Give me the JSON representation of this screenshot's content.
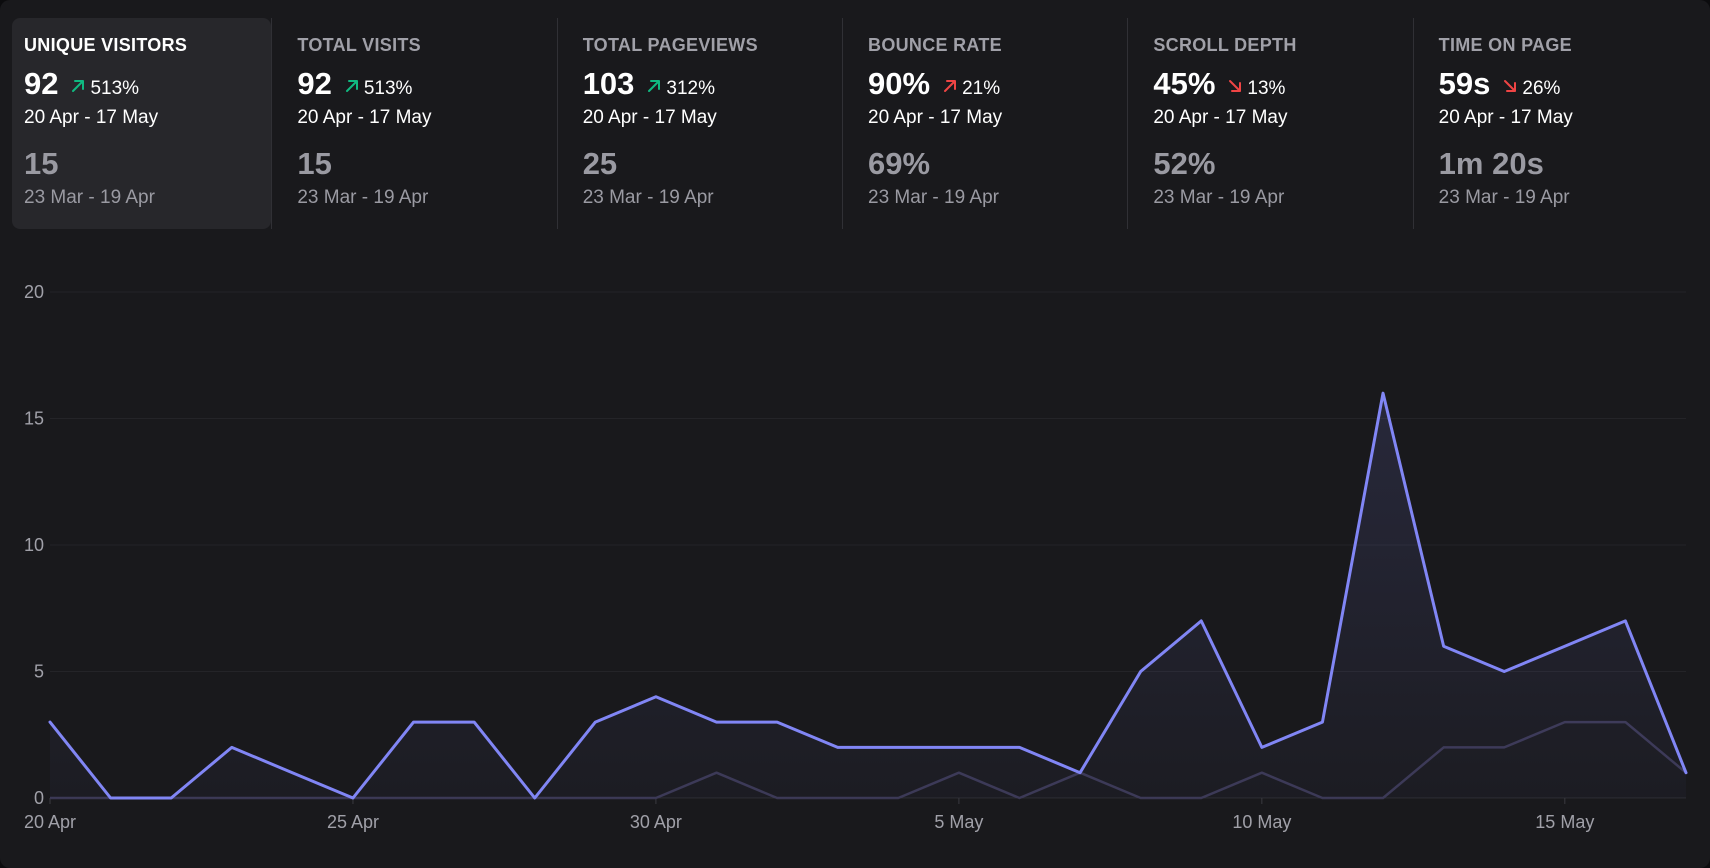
{
  "colors": {
    "positive": "#10b981",
    "negative": "#ef4444",
    "series_current": "#8186f5",
    "series_previous": "#3a3752"
  },
  "cards": [
    {
      "label": "UNIQUE VISITORS",
      "value": "92",
      "change": "513%",
      "trend": "up",
      "trend_good": true,
      "range": "20 Apr - 17 May",
      "prev_value": "15",
      "prev_range": "23 Mar - 19 Apr",
      "arrow_icon": "arrow-up-right-icon"
    },
    {
      "label": "TOTAL VISITS",
      "value": "92",
      "change": "513%",
      "trend": "up",
      "trend_good": true,
      "range": "20 Apr - 17 May",
      "prev_value": "15",
      "prev_range": "23 Mar - 19 Apr",
      "arrow_icon": "arrow-up-right-icon"
    },
    {
      "label": "TOTAL PAGEVIEWS",
      "value": "103",
      "change": "312%",
      "trend": "up",
      "trend_good": true,
      "range": "20 Apr - 17 May",
      "prev_value": "25",
      "prev_range": "23 Mar - 19 Apr",
      "arrow_icon": "arrow-up-right-icon"
    },
    {
      "label": "BOUNCE RATE",
      "value": "90%",
      "change": "21%",
      "trend": "up",
      "trend_good": false,
      "range": "20 Apr - 17 May",
      "prev_value": "69%",
      "prev_range": "23 Mar - 19 Apr",
      "arrow_icon": "arrow-up-right-icon"
    },
    {
      "label": "SCROLL DEPTH",
      "value": "45%",
      "change": "13%",
      "trend": "down",
      "trend_good": false,
      "range": "20 Apr - 17 May",
      "prev_value": "52%",
      "prev_range": "23 Mar - 19 Apr",
      "arrow_icon": "arrow-down-right-icon"
    },
    {
      "label": "TIME ON PAGE",
      "value": "59s",
      "change": "26%",
      "trend": "down",
      "trend_good": false,
      "range": "20 Apr - 17 May",
      "prev_value": "1m 20s",
      "prev_range": "23 Mar - 19 Apr",
      "arrow_icon": "arrow-down-right-icon"
    }
  ],
  "chart_data": {
    "type": "area",
    "x_start": "20 Apr",
    "x_end": "17 May",
    "x": [
      "20 Apr",
      "21 Apr",
      "22 Apr",
      "23 Apr",
      "24 Apr",
      "25 Apr",
      "26 Apr",
      "27 Apr",
      "28 Apr",
      "29 Apr",
      "30 Apr",
      "1 May",
      "2 May",
      "3 May",
      "4 May",
      "5 May",
      "6 May",
      "7 May",
      "8 May",
      "9 May",
      "10 May",
      "11 May",
      "12 May",
      "13 May",
      "14 May",
      "15 May",
      "16 May",
      "17 May"
    ],
    "xticks": [
      "20 Apr",
      "25 Apr",
      "30 Apr",
      "5 May",
      "10 May",
      "15 May"
    ],
    "yticks": [
      0,
      5,
      10,
      15,
      20
    ],
    "ylim": [
      0,
      20
    ],
    "grid": true,
    "series": [
      {
        "values": [
          3,
          0,
          0,
          2,
          1,
          0,
          3,
          3,
          0,
          3,
          4,
          3,
          3,
          2,
          2,
          2,
          2,
          1,
          5,
          7,
          2,
          3,
          16,
          6,
          5,
          6,
          7,
          1
        ]
      },
      {
        "values": [
          0,
          0,
          0,
          0,
          0,
          0,
          0,
          0,
          0,
          0,
          0,
          1,
          0,
          0,
          0,
          1,
          0,
          1,
          0,
          0,
          1,
          0,
          0,
          2,
          2,
          3,
          3,
          1
        ]
      }
    ]
  }
}
